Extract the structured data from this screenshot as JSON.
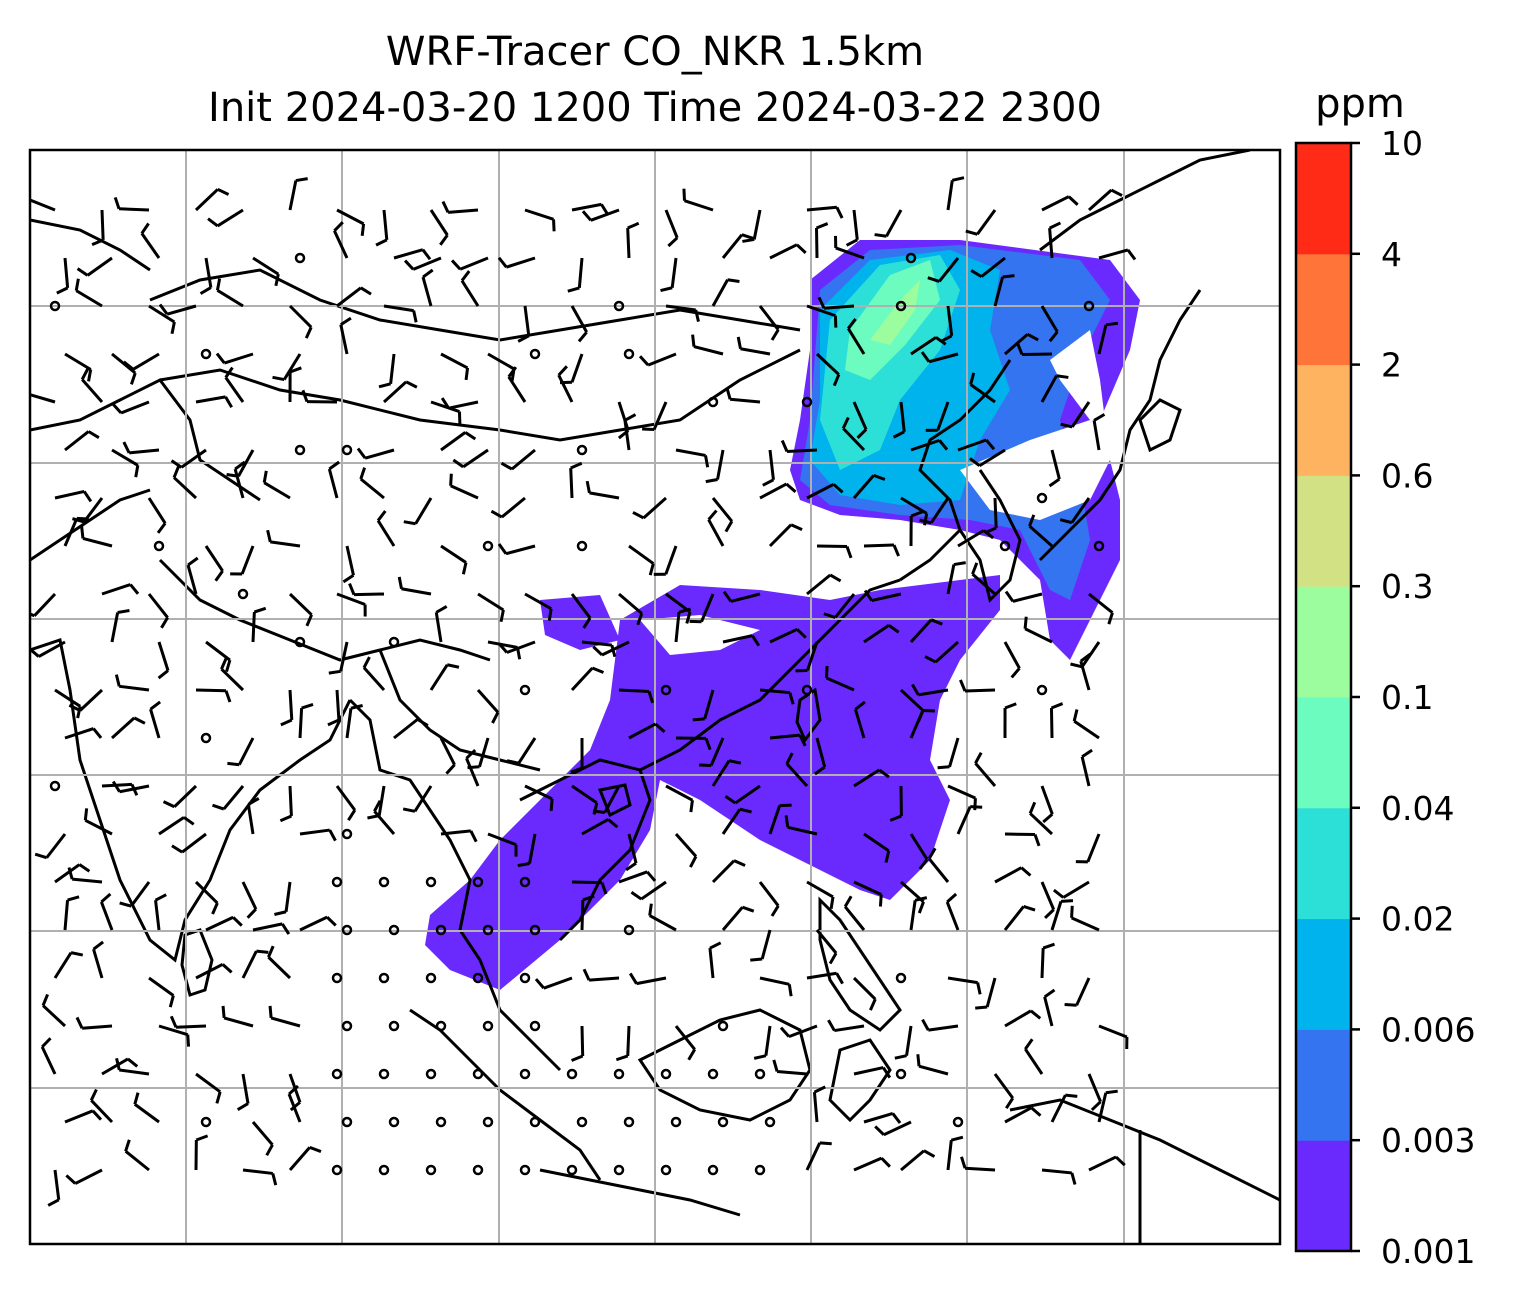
{
  "title": {
    "line1": "WRF-Tracer CO_NKR 1.5km",
    "line2": "Init 2024-03-20 1200 Time 2024-03-22 2300"
  },
  "colorbar": {
    "unit": "ppm",
    "levels": [
      "0.001",
      "0.003",
      "0.006",
      "0.02",
      "0.04",
      "0.1",
      "0.3",
      "0.6",
      "2",
      "4",
      "10"
    ],
    "colors": [
      "#6a2afe",
      "#3474f1",
      "#00b3ec",
      "#2de0d7",
      "#6cfcc0",
      "#9cfd9e",
      "#d3e185",
      "#feb360",
      "#fe7439",
      "#ff2b17"
    ]
  },
  "map": {
    "grid": true,
    "tracer_colors": {
      "low": "#6a2afe",
      "mid": "#3474f1",
      "cyan": "#00b3ec",
      "teal": "#2de0d7",
      "green": "#6cfcc0",
      "light": "#9cfd9e"
    }
  }
}
